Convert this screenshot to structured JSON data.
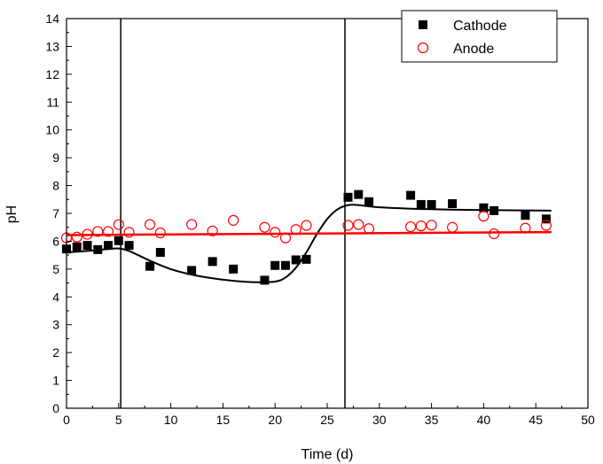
{
  "chart_data": {
    "type": "scatter",
    "xlabel": "Time (d)",
    "ylabel": "pH",
    "xlim": [
      0,
      50
    ],
    "ylim": [
      0,
      14
    ],
    "x_ticks": [
      0,
      5,
      10,
      15,
      20,
      25,
      30,
      35,
      40,
      45,
      50
    ],
    "y_ticks": [
      0,
      1,
      2,
      3,
      4,
      5,
      6,
      7,
      8,
      9,
      10,
      11,
      12,
      13,
      14
    ],
    "x_tick_labels": [
      "0",
      "5",
      "10",
      "15",
      "20",
      "25",
      "30",
      "35",
      "40",
      "45",
      "50"
    ],
    "y_tick_labels": [
      "0",
      "1",
      "2",
      "3",
      "4",
      "5",
      "6",
      "7",
      "8",
      "9",
      "10",
      "11",
      "12",
      "13",
      "14"
    ],
    "grid": false,
    "legend_position": "top-right",
    "vertical_lines": [
      5.2,
      26.7
    ],
    "series": [
      {
        "name": "Cathode",
        "marker": "filled-square",
        "color": "#000000",
        "points": [
          [
            0,
            5.72
          ],
          [
            1,
            5.8
          ],
          [
            2,
            5.85
          ],
          [
            3,
            5.7
          ],
          [
            4,
            5.85
          ],
          [
            5,
            6.02
          ],
          [
            6,
            5.85
          ],
          [
            8,
            5.1
          ],
          [
            9,
            5.6
          ],
          [
            12,
            4.95
          ],
          [
            14,
            5.27
          ],
          [
            16,
            5.0
          ],
          [
            19,
            4.6
          ],
          [
            20,
            5.13
          ],
          [
            21,
            5.13
          ],
          [
            22,
            5.33
          ],
          [
            23,
            5.35
          ],
          [
            27,
            7.58
          ],
          [
            28,
            7.68
          ],
          [
            29,
            7.42
          ],
          [
            33,
            7.65
          ],
          [
            34,
            7.32
          ],
          [
            35,
            7.32
          ],
          [
            37,
            7.35
          ],
          [
            40,
            7.2
          ],
          [
            41,
            7.1
          ],
          [
            44,
            6.93
          ],
          [
            46,
            6.8
          ]
        ],
        "fit": [
          [
            0,
            5.6
          ],
          [
            2,
            5.65
          ],
          [
            4,
            5.72
          ],
          [
            5,
            5.74
          ],
          [
            6,
            5.65
          ],
          [
            8,
            5.3
          ],
          [
            10,
            5.0
          ],
          [
            12,
            4.8
          ],
          [
            14,
            4.67
          ],
          [
            16,
            4.58
          ],
          [
            18,
            4.53
          ],
          [
            20,
            4.55
          ],
          [
            21,
            4.7
          ],
          [
            22,
            5.05
          ],
          [
            23,
            5.6
          ],
          [
            24,
            6.25
          ],
          [
            25,
            6.8
          ],
          [
            26,
            7.15
          ],
          [
            27,
            7.3
          ],
          [
            28,
            7.3
          ],
          [
            30,
            7.22
          ],
          [
            35,
            7.15
          ],
          [
            40,
            7.12
          ],
          [
            46.5,
            7.1
          ]
        ]
      },
      {
        "name": "Anode",
        "marker": "open-circle",
        "color": "#ff0000",
        "points": [
          [
            0,
            6.12
          ],
          [
            1,
            6.15
          ],
          [
            2,
            6.25
          ],
          [
            3,
            6.35
          ],
          [
            4,
            6.35
          ],
          [
            5,
            6.6
          ],
          [
            6,
            6.32
          ],
          [
            8,
            6.6
          ],
          [
            9,
            6.3
          ],
          [
            12,
            6.6
          ],
          [
            14,
            6.37
          ],
          [
            16,
            6.75
          ],
          [
            19,
            6.5
          ],
          [
            20,
            6.32
          ],
          [
            21,
            6.12
          ],
          [
            22,
            6.42
          ],
          [
            23,
            6.57
          ],
          [
            27,
            6.57
          ],
          [
            28,
            6.6
          ],
          [
            29,
            6.45
          ],
          [
            33,
            6.52
          ],
          [
            34,
            6.55
          ],
          [
            35,
            6.58
          ],
          [
            37,
            6.5
          ],
          [
            40,
            6.9
          ],
          [
            41,
            6.27
          ],
          [
            44,
            6.47
          ],
          [
            46,
            6.57
          ]
        ],
        "fit": [
          [
            0,
            6.22
          ],
          [
            46.5,
            6.33
          ]
        ]
      }
    ]
  }
}
